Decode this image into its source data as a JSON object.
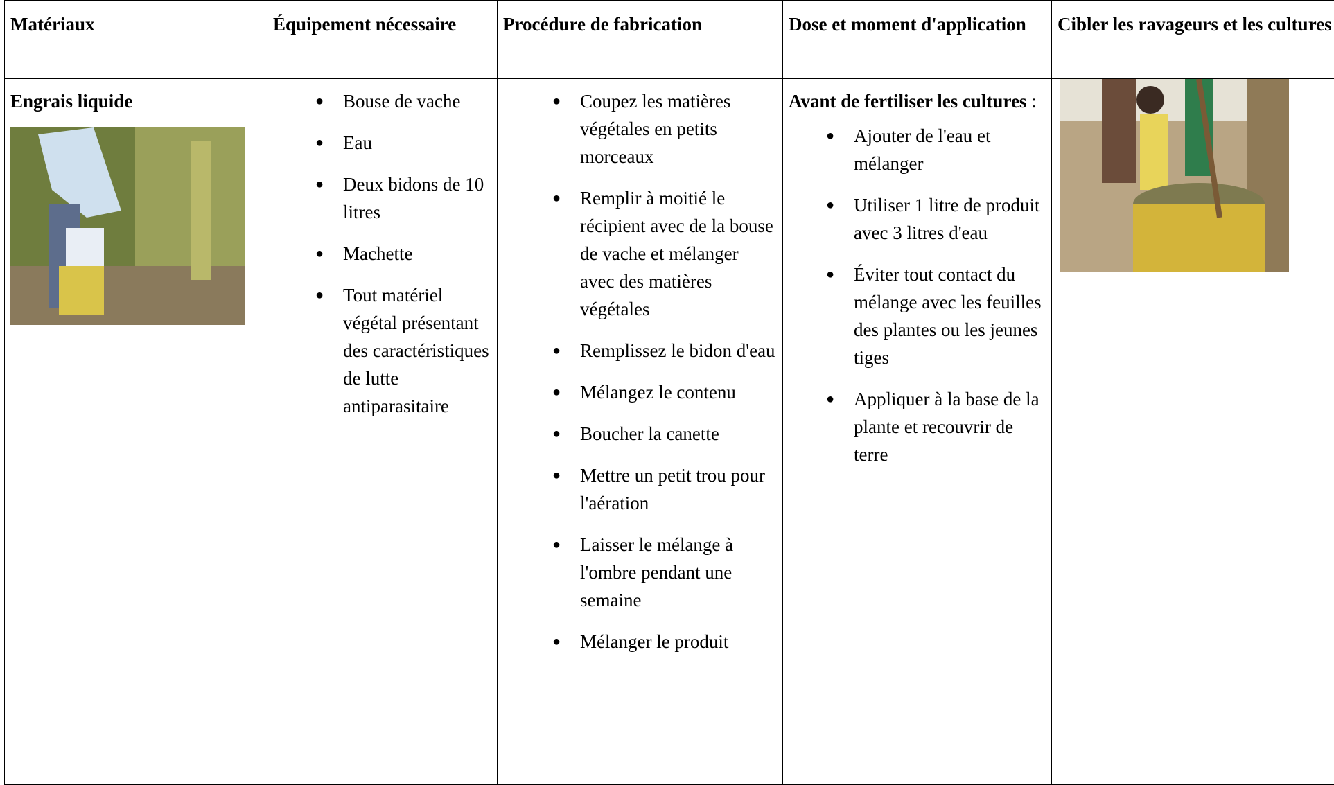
{
  "table": {
    "headers": [
      "Matériaux",
      "Équipement nécessaire",
      "Procédure de fabrication",
      "Dose et moment d'application",
      "Cibler les ravageurs et les cultures"
    ],
    "rows": [
      {
        "material": "Engrais liquide",
        "equipment": [
          "Bouse de vache",
          "Eau",
          "Deux bidons de 10 litres",
          "Machette",
          "Tout matériel végétal présentant des caractéristiques de lutte antiparasitaire"
        ],
        "procedure": [
          "Coupez les matières végétales en petits morceaux",
          "Remplir à moitié le récipient avec de la bouse de vache et mélanger avec des matières végétales",
          "Remplissez le bidon d'eau",
          "Mélangez le contenu",
          "Boucher la canette",
          "Mettre un petit trou pour l'aération",
          "Laisser le mélange à l'ombre pendant une semaine",
          "Mélanger le produit"
        ],
        "dose_intro": "Avant de fertiliser les cultures",
        "dose_intro_end": ":",
        "dose": [
          "Ajouter de l'eau et mélanger",
          "Utiliser 1 litre de produit avec 3 litres d'eau",
          "Éviter tout contact du mélange avec les feuilles des plantes ou les jeunes tiges",
          "Appliquer à la base de la plante et recouvrir de terre"
        ]
      }
    ]
  }
}
